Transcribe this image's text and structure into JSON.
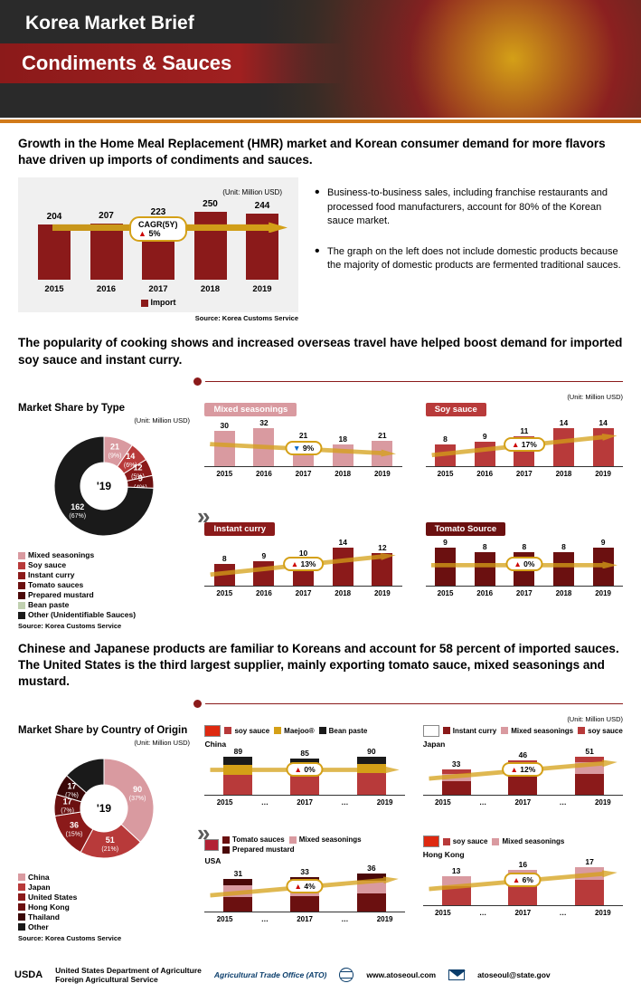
{
  "header": {
    "brief": "Korea Market Brief",
    "title": "Condiments & Sauces"
  },
  "headline1": "Growth in the Home Meal Replacement (HMR) market and Korean consumer demand for more flavors have driven up imports of condiments and sauces.",
  "chart1": {
    "unit": "(Unit: Million USD)",
    "years": [
      "2015",
      "2016",
      "2017",
      "2018",
      "2019"
    ],
    "values": [
      204,
      207,
      223,
      250,
      244
    ],
    "maxValue": 250,
    "cagr_label": "CAGR(5Y)",
    "cagr_value": "5%",
    "legend": "Import",
    "source": "Source: Korea Customs Service",
    "bar_color": "#8b1a1a"
  },
  "bullets": [
    "Business-to-business sales, including franchise restaurants and processed food manufacturers, account for 80% of the Korean sauce market.",
    "The graph on the left does not include domestic products because the majority of domestic products are fermented traditional sauces."
  ],
  "headline2": "The popularity of cooking shows and increased overseas travel have helped boost demand for imported soy sauce and instant curry.",
  "type_donut": {
    "title": "Market Share by Type",
    "unit": "(Unit: Million USD)",
    "center": "'19",
    "slices": [
      {
        "label": "21",
        "pct": "(9%)",
        "color": "#d99aa0",
        "value": 21
      },
      {
        "label": "14",
        "pct": "(6%)",
        "color": "#b83a3a",
        "value": 14
      },
      {
        "label": "12",
        "pct": "(5%)",
        "color": "#8b1a1a",
        "value": 12
      },
      {
        "label": "9",
        "pct": "(4%)",
        "color": "#6b1010",
        "value": 9
      },
      {
        "label": "162",
        "pct": "(67%)",
        "color": "#1a1a1a",
        "value": 162
      }
    ],
    "legend": [
      {
        "name": "Mixed seasonings",
        "color": "#d99aa0"
      },
      {
        "name": "Soy sauce",
        "color": "#b83a3a"
      },
      {
        "name": "Instant curry",
        "color": "#8b1a1a"
      },
      {
        "name": "Tomato sauces",
        "color": "#6b1010"
      },
      {
        "name": "Prepared mustard",
        "color": "#4a0808"
      },
      {
        "name": "Bean paste",
        "color": "#c0d0b0"
      },
      {
        "name": "Other (Unidentifiable Sauces)",
        "color": "#1a1a1a"
      }
    ],
    "source": "Source: Korea Customs Service"
  },
  "mini_charts": [
    {
      "name": "Mixed seasonings",
      "label_bg": "#d99aa0",
      "bar_color": "#d99aa0",
      "years": [
        "2015",
        "2016",
        "2017",
        "2018",
        "2019"
      ],
      "values": [
        30,
        32,
        21,
        18,
        21
      ],
      "max": 32,
      "growth": "9%",
      "growth_dir": "down"
    },
    {
      "name": "Soy sauce",
      "label_bg": "#b83a3a",
      "bar_color": "#b83a3a",
      "years": [
        "2015",
        "2016",
        "2017",
        "2018",
        "2019"
      ],
      "values": [
        8,
        9,
        11,
        14,
        14
      ],
      "max": 14,
      "growth": "17%",
      "growth_dir": "up"
    },
    {
      "name": "Instant curry",
      "label_bg": "#8b1a1a",
      "bar_color": "#8b1a1a",
      "years": [
        "2015",
        "2016",
        "2017",
        "2018",
        "2019"
      ],
      "values": [
        8,
        9,
        10,
        14,
        12
      ],
      "max": 14,
      "growth": "13%",
      "growth_dir": "up"
    },
    {
      "name": "Tomato Source",
      "label_bg": "#6b1010",
      "bar_color": "#6b1010",
      "years": [
        "2015",
        "2016",
        "2017",
        "2018",
        "2019"
      ],
      "values": [
        9,
        8,
        8,
        8,
        9
      ],
      "max": 9,
      "growth": "0%",
      "growth_dir": "up"
    }
  ],
  "unit_right": "(Unit: Million USD)",
  "headline3": "Chinese and Japanese products are familiar to Koreans and account for 58 percent of imported sauces. The United States is the third largest supplier, mainly exporting tomato sauce, mixed seasonings and mustard.",
  "country_donut": {
    "title": "Market Share by Country of Origin",
    "unit": "(Unit: Million USD)",
    "center": "'19",
    "slices": [
      {
        "label": "90",
        "pct": "(37%)",
        "color": "#d99aa0",
        "value": 90
      },
      {
        "label": "51",
        "pct": "(21%)",
        "color": "#b83a3a",
        "value": 51
      },
      {
        "label": "36",
        "pct": "(15%)",
        "color": "#8b1a1a",
        "value": 36
      },
      {
        "label": "17",
        "pct": "(7%)",
        "color": "#6b1010",
        "value": 17
      },
      {
        "label": "17",
        "pct": "(7%)",
        "color": "#3a0808",
        "value": 17
      },
      {
        "label": "",
        "pct": "",
        "color": "#1a1a1a",
        "value": 33
      }
    ],
    "legend": [
      {
        "name": "China",
        "color": "#d99aa0"
      },
      {
        "name": "Japan",
        "color": "#b83a3a"
      },
      {
        "name": "United States",
        "color": "#8b1a1a"
      },
      {
        "name": "Hong Kong",
        "color": "#6b1010"
      },
      {
        "name": "Thailand",
        "color": "#3a0808"
      },
      {
        "name": "Other",
        "color": "#1a1a1a"
      }
    ],
    "source": "Source: Korea Customs Service"
  },
  "country_charts": [
    {
      "name": "China",
      "flag_bg": "#de2910",
      "legend": [
        {
          "name": "soy sauce",
          "color": "#b83a3a"
        },
        {
          "name": "Maejoo®",
          "color": "#d4a017"
        },
        {
          "name": "Bean paste",
          "color": "#1a1a1a"
        }
      ],
      "years": [
        "2015",
        "…",
        "2017",
        "…",
        "2019"
      ],
      "values": [
        89,
        85,
        90
      ],
      "max": 90,
      "stacks": [
        [
          {
            "c": "#1a1a1a",
            "h": 0.22
          },
          {
            "c": "#d4a017",
            "h": 0.25
          },
          {
            "c": "#b83a3a",
            "h": 0.53
          }
        ],
        [
          {
            "c": "#1a1a1a",
            "h": 0.2
          },
          {
            "c": "#d4a017",
            "h": 0.26
          },
          {
            "c": "#b83a3a",
            "h": 0.54
          }
        ],
        [
          {
            "c": "#1a1a1a",
            "h": 0.21
          },
          {
            "c": "#d4a017",
            "h": 0.24
          },
          {
            "c": "#b83a3a",
            "h": 0.55
          }
        ]
      ],
      "growth": "0%",
      "growth_dir": "up"
    },
    {
      "name": "Japan",
      "flag_bg": "#fff",
      "legend": [
        {
          "name": "Instant curry",
          "color": "#8b1a1a"
        },
        {
          "name": "Mixed seasonings",
          "color": "#d99aa0"
        },
        {
          "name": "soy sauce",
          "color": "#b83a3a"
        }
      ],
      "years": [
        "2015",
        "…",
        "2017",
        "…",
        "2019"
      ],
      "values": [
        33,
        46,
        51
      ],
      "max": 51,
      "stacks": [
        [
          {
            "c": "#b83a3a",
            "h": 0.18
          },
          {
            "c": "#d99aa0",
            "h": 0.3
          },
          {
            "c": "#8b1a1a",
            "h": 0.52
          }
        ],
        [
          {
            "c": "#b83a3a",
            "h": 0.17
          },
          {
            "c": "#d99aa0",
            "h": 0.31
          },
          {
            "c": "#8b1a1a",
            "h": 0.52
          }
        ],
        [
          {
            "c": "#b83a3a",
            "h": 0.16
          },
          {
            "c": "#d99aa0",
            "h": 0.3
          },
          {
            "c": "#8b1a1a",
            "h": 0.54
          }
        ]
      ],
      "growth": "12%",
      "growth_dir": "up"
    },
    {
      "name": "USA",
      "flag_bg": "#b22234",
      "legend": [
        {
          "name": "Tomato sauces",
          "color": "#6b1010"
        },
        {
          "name": "Mixed seasonings",
          "color": "#d99aa0"
        },
        {
          "name": "Prepared mustard",
          "color": "#4a0808"
        }
      ],
      "years": [
        "2015",
        "…",
        "2017",
        "…",
        "2019"
      ],
      "values": [
        31,
        33,
        36
      ],
      "max": 36,
      "stacks": [
        [
          {
            "c": "#4a0808",
            "h": 0.2
          },
          {
            "c": "#d99aa0",
            "h": 0.35
          },
          {
            "c": "#6b1010",
            "h": 0.45
          }
        ],
        [
          {
            "c": "#4a0808",
            "h": 0.19
          },
          {
            "c": "#d99aa0",
            "h": 0.36
          },
          {
            "c": "#6b1010",
            "h": 0.45
          }
        ],
        [
          {
            "c": "#4a0808",
            "h": 0.18
          },
          {
            "c": "#d99aa0",
            "h": 0.35
          },
          {
            "c": "#6b1010",
            "h": 0.47
          }
        ]
      ],
      "growth": "4%",
      "growth_dir": "up"
    },
    {
      "name": "Hong Kong",
      "flag_bg": "#de2910",
      "legend": [
        {
          "name": "soy sauce",
          "color": "#b83a3a"
        },
        {
          "name": "Mixed seasonings",
          "color": "#d99aa0"
        }
      ],
      "years": [
        "2015",
        "…",
        "2017",
        "…",
        "2019"
      ],
      "values": [
        13,
        16,
        17
      ],
      "max": 17,
      "stacks": [
        [
          {
            "c": "#d99aa0",
            "h": 0.35
          },
          {
            "c": "#b83a3a",
            "h": 0.65
          }
        ],
        [
          {
            "c": "#d99aa0",
            "h": 0.34
          },
          {
            "c": "#b83a3a",
            "h": 0.66
          }
        ],
        [
          {
            "c": "#d99aa0",
            "h": 0.33
          },
          {
            "c": "#b83a3a",
            "h": 0.67
          }
        ]
      ],
      "growth": "6%",
      "growth_dir": "up"
    }
  ],
  "footer": {
    "usda": "USDA",
    "dept1": "United States Department of Agriculture",
    "dept2": "Foreign Agricultural Service",
    "ato": "Agricultural Trade Office (ATO)",
    "url": "www.atoseoul.com",
    "email": "atoseoul@state.gov"
  }
}
